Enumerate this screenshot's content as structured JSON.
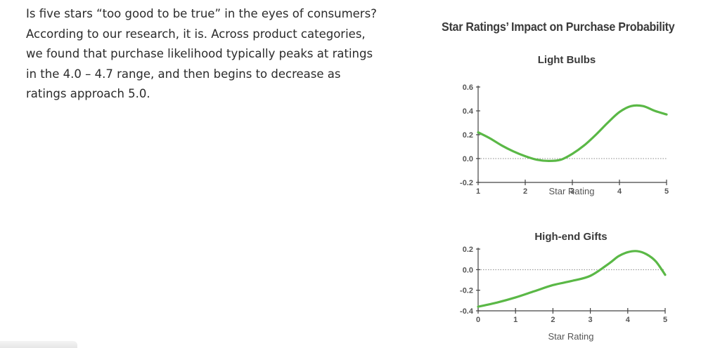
{
  "article": {
    "paragraph": "Is five stars “too good to be true” in the eyes of consumers? According to our research, it is. Across product categories, we found that purchase likelihood typically peaks at ratings in the 4.0 – 4.7 range, and then begins to decrease as ratings approach 5.0."
  },
  "figure": {
    "title": "Star Ratings’ Impact on Purchase Probability",
    "line_color": "#5ab846"
  },
  "chart_data": [
    {
      "type": "line",
      "title": "Light Bulbs",
      "xlabel": "Star Rating",
      "ylabel": "",
      "xlim": [
        1,
        5
      ],
      "ylim": [
        -0.2,
        0.6
      ],
      "xticks": [
        1,
        2,
        3,
        4,
        5
      ],
      "yticks": [
        -0.2,
        0.0,
        0.2,
        0.4,
        0.6
      ],
      "ytick_labels": [
        "-0.2",
        "0.0",
        "0.2",
        "0.4",
        "0.6"
      ],
      "zero_line": true,
      "series": [
        {
          "x": [
            1.0,
            1.25,
            1.5,
            1.75,
            2.0,
            2.25,
            2.5,
            2.75,
            3.0,
            3.25,
            3.5,
            3.75,
            4.0,
            4.25,
            4.5,
            4.75,
            5.0
          ],
          "y": [
            0.22,
            0.17,
            0.11,
            0.06,
            0.02,
            -0.01,
            -0.02,
            -0.01,
            0.04,
            0.11,
            0.2,
            0.3,
            0.39,
            0.44,
            0.44,
            0.4,
            0.37
          ]
        }
      ]
    },
    {
      "type": "line",
      "title": "High-end Gifts",
      "xlabel": "Star Rating",
      "ylabel": "",
      "xlim": [
        0,
        5
      ],
      "ylim": [
        -0.4,
        0.2
      ],
      "xticks": [
        0,
        1,
        2,
        3,
        4,
        5
      ],
      "yticks": [
        -0.4,
        -0.2,
        0.0,
        0.2
      ],
      "ytick_labels": [
        "-0.4",
        "-0.2",
        "0.0",
        "0.2"
      ],
      "zero_line": true,
      "series": [
        {
          "x": [
            0.0,
            0.5,
            1.0,
            1.5,
            2.0,
            2.5,
            3.0,
            3.5,
            3.75,
            4.0,
            4.25,
            4.5,
            4.75,
            5.0
          ],
          "y": [
            -0.36,
            -0.32,
            -0.27,
            -0.21,
            -0.15,
            -0.11,
            -0.06,
            0.06,
            0.13,
            0.17,
            0.18,
            0.15,
            0.08,
            -0.05
          ]
        }
      ]
    }
  ]
}
